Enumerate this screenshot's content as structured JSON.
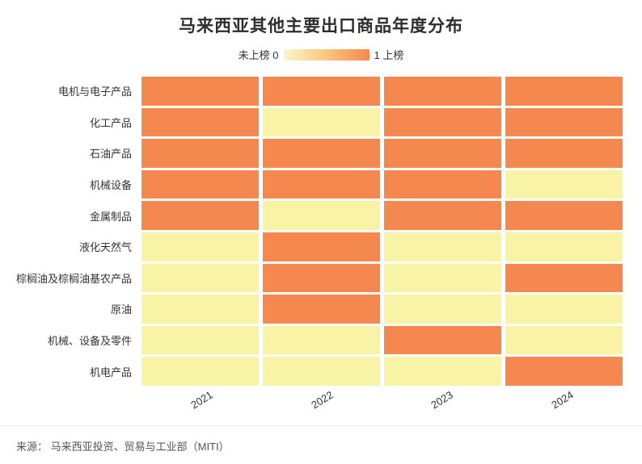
{
  "title": "马来西亚其他主要出口商品年度分布",
  "legend": {
    "min_label": "未上榜 0",
    "max_label": "1 上榜"
  },
  "source": "来源： 马来西亚投资、贸易与工业部（MITI）",
  "colors": {
    "on": "#F5884E",
    "off": "#F9F3A5",
    "gradient_start": "#FDF7C9",
    "gradient_end": "#F5884E",
    "title_text": "#2D2D2D",
    "axis_text": "#333333",
    "source_text": "#555555"
  },
  "chart_data": {
    "type": "heatmap",
    "title": "马来西亚其他主要出口商品年度分布",
    "x": [
      "2021",
      "2022",
      "2023",
      "2024"
    ],
    "categories": [
      "电机与电子产品",
      "化工产品",
      "石油产品",
      "机械设备",
      "金属制品",
      "液化天然气",
      "棕榈油及棕榈油基农产品",
      "原油",
      "机械、设备及零件",
      "机电产品"
    ],
    "value_legend": {
      "0": "未上榜",
      "1": "上榜"
    },
    "value_range": [
      0,
      1
    ],
    "legend_position": "top-center",
    "series": [
      {
        "name": "电机与电子产品",
        "values": [
          1,
          1,
          1,
          1
        ]
      },
      {
        "name": "化工产品",
        "values": [
          1,
          0,
          1,
          1
        ]
      },
      {
        "name": "石油产品",
        "values": [
          1,
          1,
          1,
          1
        ]
      },
      {
        "name": "机械设备",
        "values": [
          1,
          1,
          1,
          0
        ]
      },
      {
        "name": "金属制品",
        "values": [
          1,
          0,
          1,
          1
        ]
      },
      {
        "name": "液化天然气",
        "values": [
          0,
          1,
          0,
          0
        ]
      },
      {
        "name": "棕榈油及棕榈油基农产品",
        "values": [
          0,
          1,
          0,
          1
        ]
      },
      {
        "name": "原油",
        "values": [
          0,
          1,
          0,
          0
        ]
      },
      {
        "name": "机械、设备及零件",
        "values": [
          0,
          0,
          1,
          0
        ]
      },
      {
        "name": "机电产品",
        "values": [
          0,
          0,
          0,
          1
        ]
      }
    ]
  }
}
